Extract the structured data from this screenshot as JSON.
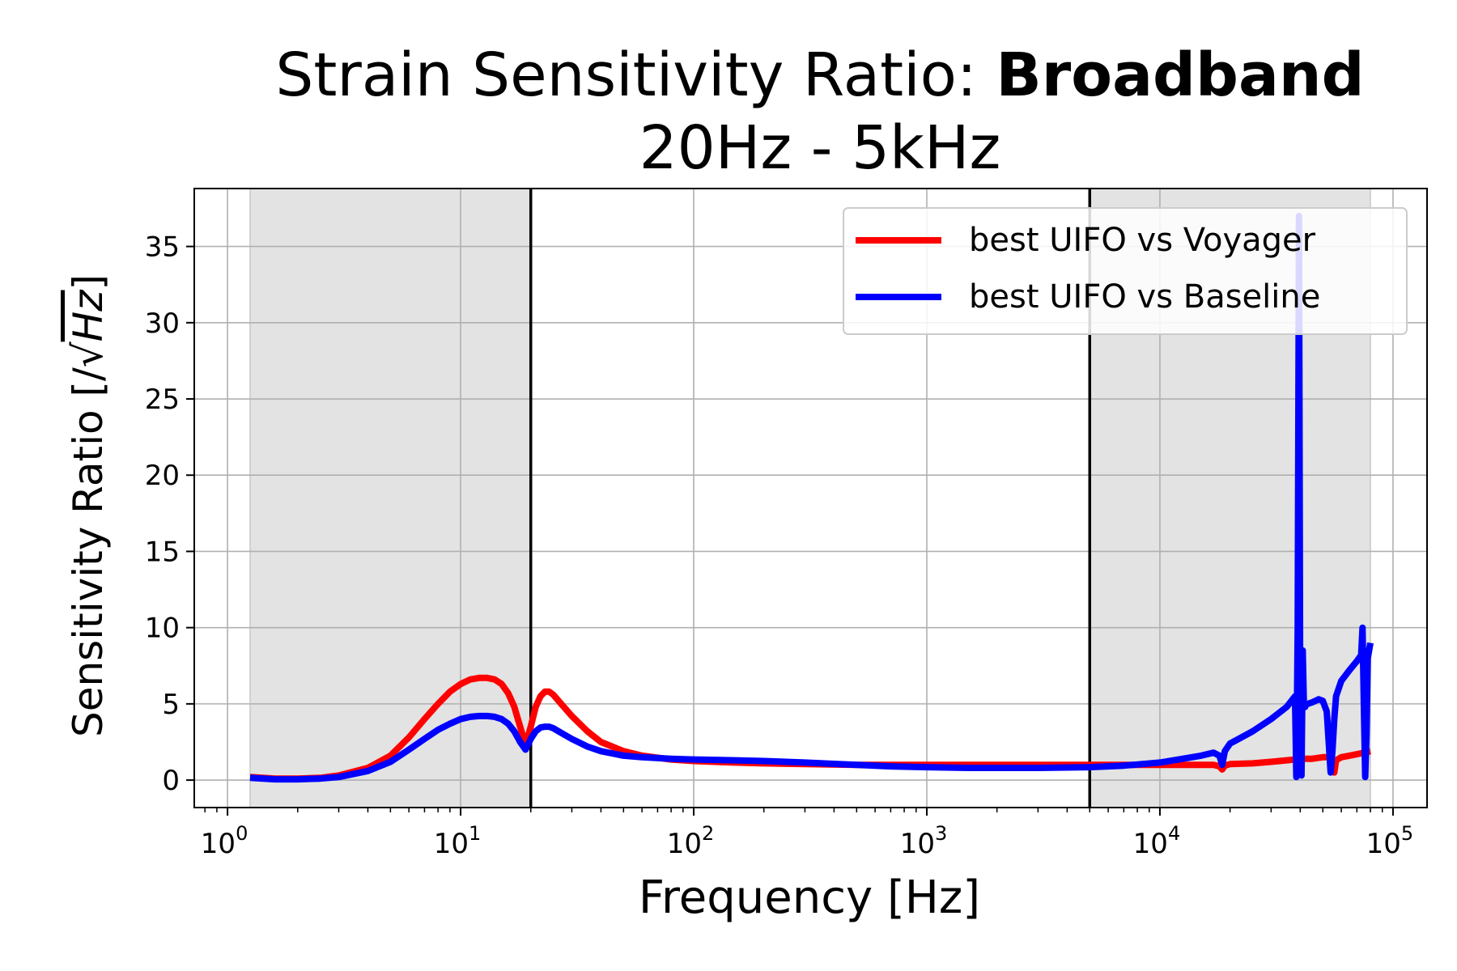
{
  "chart_data": {
    "type": "line",
    "title_prefix": "Strain Sensitivity Ratio: ",
    "title_bold": "Broadband",
    "subtitle": "20Hz - 5kHz",
    "xlabel": "Frequency [Hz]",
    "ylabel_text": "Sensitivity Ratio [/",
    "ylabel_unit": "Hz",
    "ylabel_close": "]",
    "xscale": "log",
    "xlim": [
      0.72,
      140000
    ],
    "ylim": [
      -1.8,
      38.8
    ],
    "x_ticks": [
      {
        "value": 1,
        "base": "10",
        "exp": "0"
      },
      {
        "value": 10,
        "base": "10",
        "exp": "1"
      },
      {
        "value": 100,
        "base": "10",
        "exp": "2"
      },
      {
        "value": 1000,
        "base": "10",
        "exp": "3"
      },
      {
        "value": 10000,
        "base": "10",
        "exp": "4"
      },
      {
        "value": 100000,
        "base": "10",
        "exp": "5"
      }
    ],
    "y_ticks": [
      0,
      5,
      10,
      15,
      20,
      25,
      30,
      35
    ],
    "grid": true,
    "legend_position": "top-right",
    "shaded_regions": [
      [
        1.25,
        20
      ],
      [
        5000,
        80000
      ]
    ],
    "vertical_lines": [
      20,
      5000
    ],
    "series": [
      {
        "name": "best UIFO vs Voyager",
        "color": "#ff0000",
        "x": [
          1.25,
          1.6,
          2,
          2.5,
          3,
          4,
          5,
          6,
          7,
          8,
          9,
          10,
          11,
          12,
          13,
          14,
          15,
          16,
          17,
          18,
          19,
          20,
          21,
          22,
          23,
          24,
          25,
          27,
          30,
          35,
          40,
          50,
          60,
          80,
          100,
          150,
          200,
          300,
          500,
          700,
          1000,
          1500,
          2000,
          3000,
          5000,
          7000,
          10000,
          15000,
          17000,
          18000,
          18500,
          19000,
          20000,
          25000,
          30000,
          35000,
          38000,
          40000,
          42000,
          45000,
          50000,
          53000,
          55000,
          56000,
          57000,
          60000,
          65000,
          70000,
          75000,
          80000
        ],
        "y": [
          0.2,
          0.1,
          0.1,
          0.15,
          0.3,
          0.8,
          1.6,
          2.8,
          4.0,
          5.0,
          5.8,
          6.3,
          6.6,
          6.7,
          6.7,
          6.6,
          6.3,
          5.7,
          4.8,
          3.5,
          2.3,
          3.5,
          4.8,
          5.5,
          5.8,
          5.8,
          5.6,
          5.0,
          4.2,
          3.2,
          2.5,
          1.9,
          1.6,
          1.35,
          1.25,
          1.15,
          1.1,
          1.05,
          1.0,
          1.0,
          1.0,
          1.0,
          1.0,
          1.0,
          1.0,
          1.0,
          1.0,
          1.0,
          1.0,
          0.9,
          0.7,
          0.95,
          1.05,
          1.1,
          1.2,
          1.3,
          1.35,
          1.4,
          1.4,
          1.4,
          1.5,
          1.5,
          1.2,
          0.5,
          1.3,
          1.5,
          1.6,
          1.7,
          1.8,
          1.9
        ]
      },
      {
        "name": "best UIFO vs Baseline",
        "color": "#0000ff",
        "x": [
          1.25,
          1.6,
          2,
          2.5,
          3,
          4,
          5,
          6,
          7,
          8,
          9,
          10,
          11,
          12,
          13,
          14,
          15,
          16,
          17,
          18,
          19,
          20,
          21,
          22,
          23,
          24,
          25,
          27,
          30,
          35,
          40,
          50,
          60,
          80,
          100,
          150,
          200,
          300,
          500,
          700,
          1000,
          1500,
          2000,
          3000,
          5000,
          7000,
          10000,
          15000,
          17000,
          18000,
          18500,
          19000,
          20000,
          25000,
          30000,
          35000,
          38000,
          38500,
          39000,
          39500,
          40000,
          40500,
          41000,
          41500,
          42000,
          42500,
          43000,
          45000,
          48000,
          50000,
          52000,
          53000,
          54000,
          55000,
          56000,
          57000,
          60000,
          65000,
          70000,
          73000,
          74000,
          75000,
          76000,
          77000,
          78000,
          80000
        ],
        "y": [
          0.15,
          0.05,
          0.05,
          0.1,
          0.2,
          0.6,
          1.2,
          2.0,
          2.7,
          3.3,
          3.7,
          4.0,
          4.15,
          4.2,
          4.2,
          4.15,
          4.0,
          3.7,
          3.2,
          2.5,
          2.0,
          2.7,
          3.2,
          3.45,
          3.5,
          3.5,
          3.4,
          3.1,
          2.7,
          2.2,
          1.9,
          1.6,
          1.5,
          1.4,
          1.35,
          1.3,
          1.25,
          1.15,
          1.0,
          0.9,
          0.85,
          0.8,
          0.8,
          0.8,
          0.85,
          0.95,
          1.15,
          1.6,
          1.8,
          1.6,
          1.0,
          1.9,
          2.4,
          3.2,
          4.0,
          4.8,
          5.5,
          0.2,
          10.0,
          37.0,
          4.5,
          0.3,
          8.5,
          4.8,
          4.8,
          5.0,
          5.0,
          5.1,
          5.3,
          5.2,
          4.5,
          2.5,
          0.5,
          2.0,
          4.0,
          5.5,
          6.5,
          7.2,
          7.8,
          8.2,
          10.0,
          5.0,
          0.2,
          3.0,
          8.0,
          9.0
        ]
      }
    ]
  }
}
